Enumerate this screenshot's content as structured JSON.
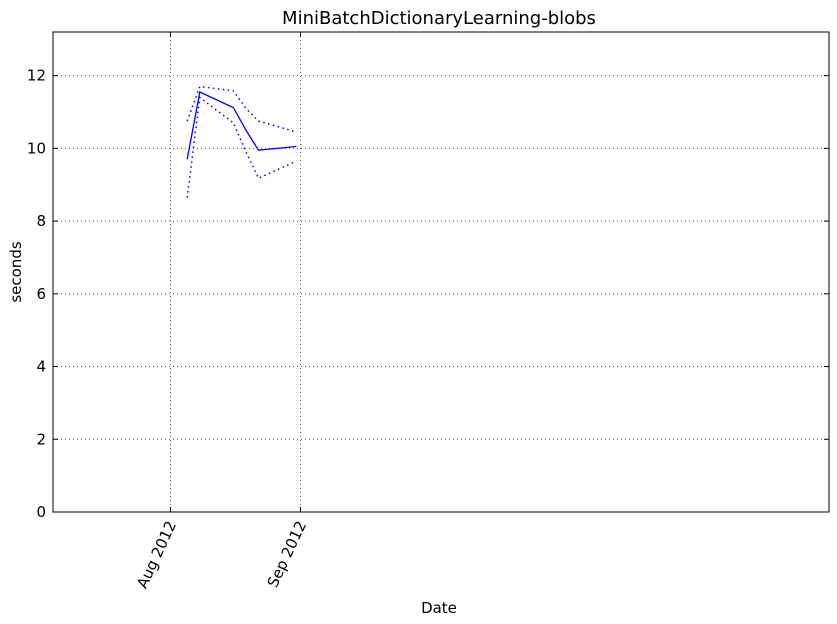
{
  "chart_data": {
    "type": "line",
    "title": "MiniBatchDictionaryLearning-blobs",
    "xlabel": "Date",
    "ylabel": "seconds",
    "xlim": [
      "2012-07-04",
      "2013-01-05"
    ],
    "ylim": [
      0,
      13.2
    ],
    "grid": true,
    "x_ticks": [
      {
        "date": "2012-08-01",
        "label": "Aug 2012"
      },
      {
        "date": "2012-09-01",
        "label": "Sep 2012"
      }
    ],
    "y_ticks": [
      0,
      2,
      4,
      6,
      8,
      10,
      12
    ],
    "series": [
      {
        "style": "solid",
        "color": "#0000ff",
        "points": [
          {
            "x": "2012-08-05",
            "y": 9.7
          },
          {
            "x": "2012-08-08",
            "y": 11.55
          },
          {
            "x": "2012-08-16",
            "y": 11.12
          },
          {
            "x": "2012-08-19",
            "y": 10.5
          },
          {
            "x": "2012-08-22",
            "y": 9.95
          },
          {
            "x": "2012-08-31",
            "y": 10.05
          }
        ]
      },
      {
        "style": "dotted",
        "color": "#0000ff",
        "points": [
          {
            "x": "2012-08-05",
            "y": 10.75
          },
          {
            "x": "2012-08-08",
            "y": 11.7
          },
          {
            "x": "2012-08-16",
            "y": 11.58
          },
          {
            "x": "2012-08-19",
            "y": 11.1
          },
          {
            "x": "2012-08-22",
            "y": 10.75
          },
          {
            "x": "2012-08-31",
            "y": 10.45
          }
        ]
      },
      {
        "style": "dotted",
        "color": "#0000ff",
        "points": [
          {
            "x": "2012-08-05",
            "y": 8.65
          },
          {
            "x": "2012-08-08",
            "y": 11.4
          },
          {
            "x": "2012-08-16",
            "y": 10.7
          },
          {
            "x": "2012-08-19",
            "y": 9.9
          },
          {
            "x": "2012-08-22",
            "y": 9.18
          },
          {
            "x": "2012-08-31",
            "y": 9.65
          }
        ]
      }
    ]
  }
}
